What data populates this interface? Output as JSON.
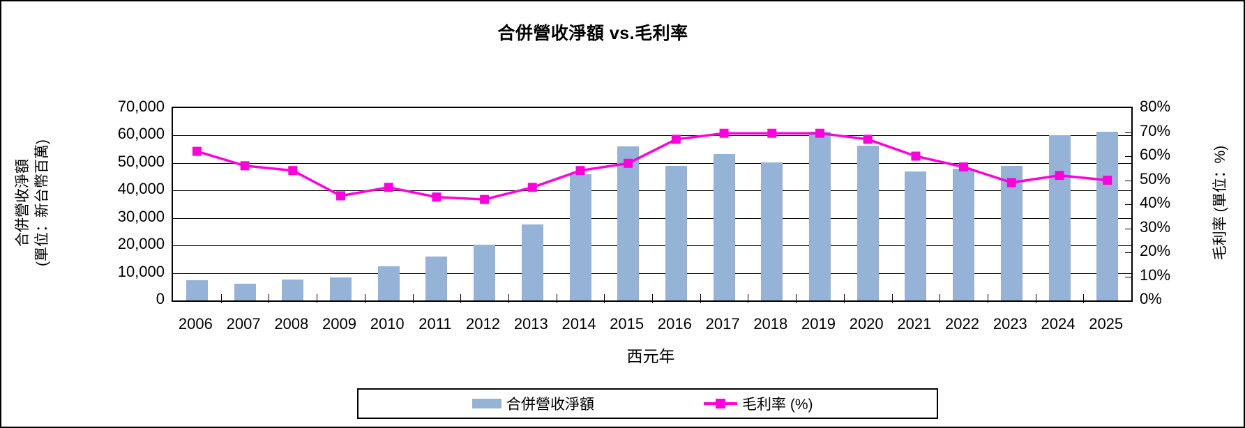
{
  "title": "合併營收淨額 vs.毛利率",
  "chart_data": {
    "type": "combo-bar-line",
    "title": "合併營收淨額 vs.毛利率",
    "categories": [
      "2006",
      "2007",
      "2008",
      "2009",
      "2010",
      "2011",
      "2012",
      "2013",
      "2014",
      "2015",
      "2016",
      "2017",
      "2018",
      "2019",
      "2020",
      "2021",
      "2022",
      "2023",
      "2024",
      "2025"
    ],
    "series": [
      {
        "name": "合併營收淨額",
        "type": "bar",
        "axis": "left",
        "color": "#95B3D7",
        "values": [
          7400,
          6000,
          7700,
          8300,
          12500,
          16000,
          20300,
          27700,
          45900,
          56000,
          48900,
          53400,
          50300,
          61300,
          56300,
          47000,
          47900,
          48900,
          60000,
          61400
        ]
      },
      {
        "name": "毛利率 (%)",
        "type": "line",
        "axis": "right",
        "color": "#FF00DD",
        "values": [
          62,
          56,
          54,
          43.5,
          47,
          43,
          42,
          47,
          54,
          57,
          67,
          69.5,
          69.5,
          69.5,
          67,
          60,
          55.5,
          49,
          52,
          50
        ]
      }
    ],
    "left_axis": {
      "title_line1": "合併營收淨額",
      "title_line2": "(單位：新台幣百萬)",
      "min": 0,
      "max": 70000,
      "step": 10000,
      "tick_labels": [
        "70,000",
        "60,000",
        "50,000",
        "40,000",
        "30,000",
        "20,000",
        "10,000",
        "0"
      ]
    },
    "right_axis": {
      "title": "毛利率 (單位：%)",
      "min": 0,
      "max": 80,
      "step": 10,
      "tick_labels": [
        "80%",
        "70%",
        "60%",
        "50%",
        "40%",
        "30%",
        "20%",
        "10%",
        "0%"
      ]
    },
    "x_axis": {
      "title": "西元年"
    },
    "legend_position": "bottom",
    "grid": true
  }
}
